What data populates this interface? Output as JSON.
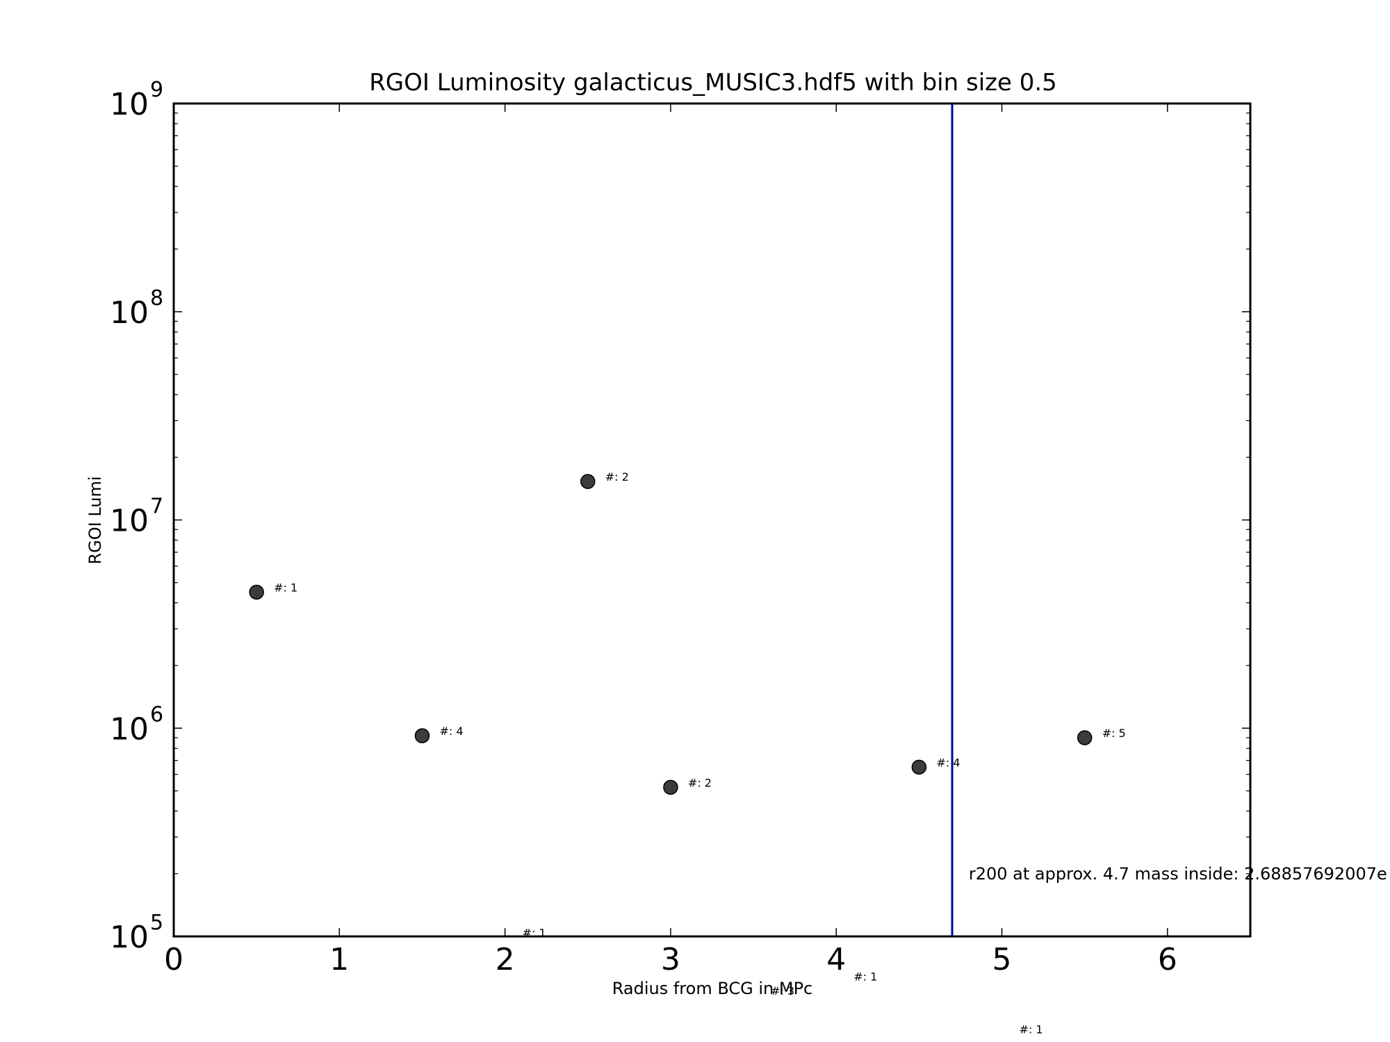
{
  "chart_data": {
    "type": "scatter",
    "title": "RGOI Luminosity galacticus_MUSIC3.hdf5 with bin size 0.5",
    "xlabel": "Radius from BCG in MPc",
    "ylabel": "RGOI Lumi",
    "xlim": [
      0,
      6.5
    ],
    "ylim": [
      100000,
      1000000000
    ],
    "yscale": "log",
    "grid": false,
    "legend": "none",
    "x_ticks": [
      0,
      1,
      2,
      3,
      4,
      5,
      6
    ],
    "y_ticks": [
      {
        "base": "10",
        "exp": "5"
      },
      {
        "base": "10",
        "exp": "6"
      },
      {
        "base": "10",
        "exp": "7"
      },
      {
        "base": "10",
        "exp": "8"
      },
      {
        "base": "10",
        "exp": "9"
      }
    ],
    "points": [
      {
        "x": 0.5,
        "y": 4500000,
        "label": "#: 1"
      },
      {
        "x": 1.5,
        "y": 920000,
        "label": "#: 4"
      },
      {
        "x": 2.5,
        "y": 15300000,
        "label": "#: 2"
      },
      {
        "x": 3.0,
        "y": 520000,
        "label": "#: 2"
      },
      {
        "x": 4.5,
        "y": 650000,
        "label": "#: 4"
      },
      {
        "x": 5.5,
        "y": 900000,
        "label": "#: 5"
      }
    ],
    "offscale_labels": [
      {
        "x": 2.0,
        "y": 99000,
        "label": "#: 1"
      },
      {
        "x": 4.0,
        "y": 61000,
        "label": "#: 1"
      },
      {
        "x": 3.5,
        "y": 52000,
        "label": "#: 3"
      },
      {
        "x": 5.0,
        "y": 34000,
        "label": "#: 1"
      }
    ],
    "vline": {
      "x": 4.7,
      "color": "#0000aa"
    },
    "annotation": {
      "x": 4.8,
      "y": 200000,
      "text": "r200 at approx. 4.7 mass inside: 2.68857692007e"
    },
    "colors": {
      "marker_fill": "#3c3c3c",
      "marker_edge": "#000000",
      "axes": "#000000"
    }
  }
}
